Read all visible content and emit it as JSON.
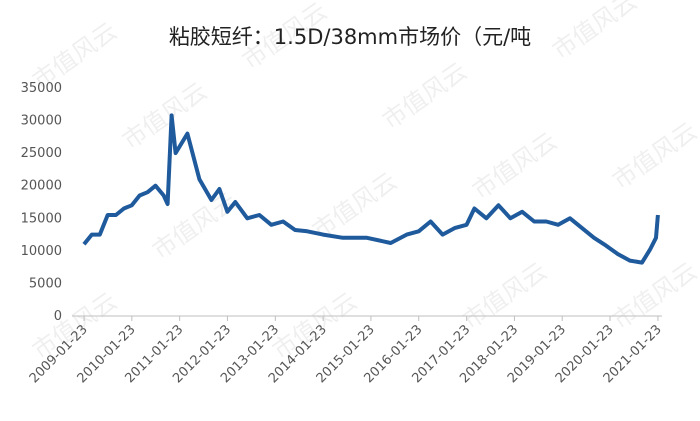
{
  "chart_data": {
    "type": "line",
    "title": "粘胶短纤：1.5D/38mm市场价（元/吨",
    "watermark": "市值风云",
    "x": [
      "2009-01-23",
      "2009-03-23",
      "2009-05-23",
      "2009-07-23",
      "2009-09-23",
      "2009-11-23",
      "2010-01-23",
      "2010-03-23",
      "2010-05-23",
      "2010-07-23",
      "2010-09-23",
      "2010-10-23",
      "2010-11-23",
      "2010-12-23",
      "2011-03-23",
      "2011-06-23",
      "2011-09-23",
      "2011-11-23",
      "2012-01-23",
      "2012-03-23",
      "2012-06-23",
      "2012-09-23",
      "2012-12-23",
      "2013-03-23",
      "2013-06-23",
      "2013-09-23",
      "2014-01-23",
      "2014-06-23",
      "2014-12-23",
      "2015-06-23",
      "2015-10-23",
      "2016-01-23",
      "2016-04-23",
      "2016-07-23",
      "2016-10-23",
      "2017-01-23",
      "2017-03-23",
      "2017-06-23",
      "2017-09-23",
      "2017-12-23",
      "2018-03-23",
      "2018-06-23",
      "2018-09-23",
      "2018-12-23",
      "2019-03-23",
      "2019-06-23",
      "2019-09-23",
      "2019-12-23",
      "2020-03-23",
      "2020-06-23",
      "2020-09-23",
      "2020-11-23",
      "2021-01-08",
      "2021-01-23"
    ],
    "series": [
      {
        "name": "市场价",
        "color": "#1f5a9c",
        "values": [
          11000,
          12500,
          12500,
          15500,
          15500,
          16500,
          17000,
          18500,
          19000,
          20000,
          18500,
          17200,
          30800,
          25000,
          28000,
          21000,
          17800,
          19500,
          16000,
          17500,
          15000,
          15500,
          14000,
          14500,
          13200,
          13000,
          12500,
          12000,
          12000,
          11200,
          12500,
          13000,
          14500,
          12500,
          13500,
          14000,
          16500,
          15000,
          17000,
          15000,
          16000,
          14500,
          14500,
          14000,
          15000,
          13500,
          12000,
          10800,
          9500,
          8500,
          8200,
          10200,
          12000,
          15500
        ]
      }
    ],
    "xlim": [
      "2008-10-23",
      "2021-02-23"
    ],
    "xticks": [
      "2009-01-23",
      "2010-01-23",
      "2011-01-23",
      "2012-01-23",
      "2013-01-23",
      "2014-01-23",
      "2015-01-23",
      "2016-01-23",
      "2017-01-23",
      "2018-01-23",
      "2019-01-23",
      "2020-01-23",
      "2021-01-23"
    ],
    "ylim": [
      0,
      35000
    ],
    "yticks": [
      0,
      5000,
      10000,
      15000,
      20000,
      25000,
      30000,
      35000
    ]
  }
}
